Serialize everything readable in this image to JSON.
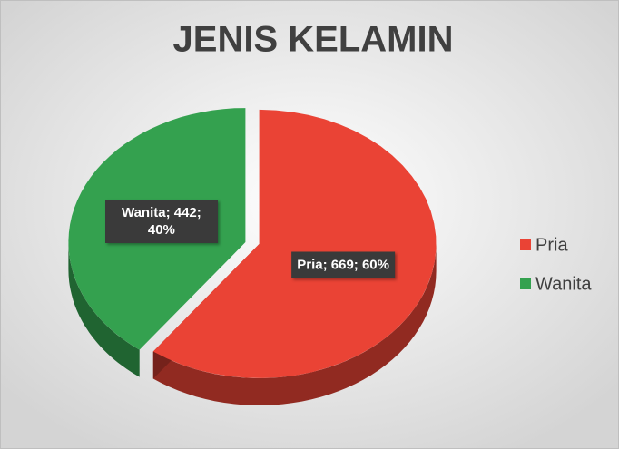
{
  "chart_data": {
    "type": "pie",
    "title": "JENIS KELAMIN",
    "categories": [
      "Pria",
      "Wanita"
    ],
    "values": [
      669,
      442
    ],
    "value_labels": [
      "Pria; 669; 60%",
      "Wanita; 442; 40%"
    ],
    "colors": [
      "#ea4335",
      "#34a14f"
    ],
    "legend": "right"
  }
}
